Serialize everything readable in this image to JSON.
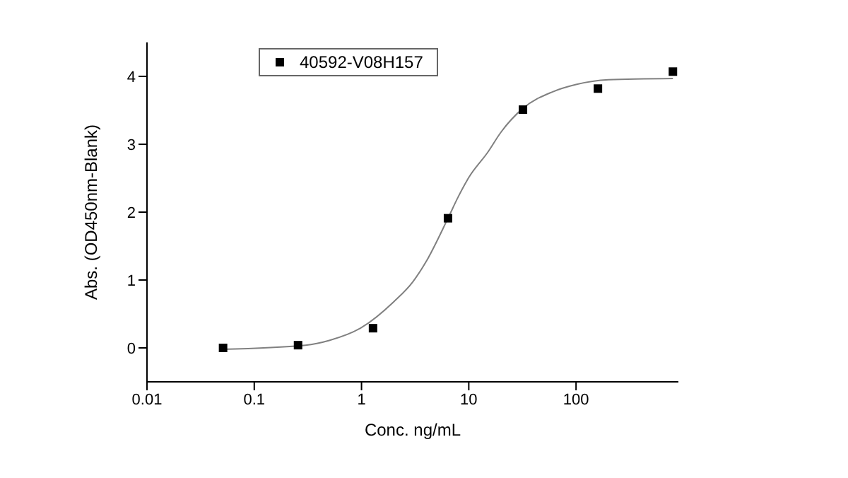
{
  "chart_data": {
    "type": "scatter",
    "xlabel": "Conc. ng/mL",
    "ylabel": "Abs. (OD450nm-Blank)",
    "log": "x",
    "xlim": [
      0.01,
      900
    ],
    "xticks": [
      0.01,
      0.1,
      1,
      10,
      100
    ],
    "ylim": [
      -0.5,
      4.5
    ],
    "yticks": [
      0,
      1,
      2,
      3,
      4
    ],
    "legend": "top left",
    "series": [
      {
        "name": "40592-V08H157",
        "color": "#000000",
        "marker": "square",
        "x": [
          0.0512,
          0.256,
          1.28,
          6.4,
          32,
          160,
          800
        ],
        "values": [
          0,
          0.04,
          0.29,
          1.91,
          3.51,
          3.82,
          4.07
        ]
      },
      {
        "type": "line",
        "color": "#808080",
        "marker": "none",
        "x": [
          0.05,
          0.3,
          0.5,
          1,
          2,
          3,
          4,
          6.4,
          8,
          10,
          15,
          20,
          32,
          60,
          100,
          200,
          800
        ],
        "values": [
          -0.02,
          0.04,
          0.11,
          0.3,
          0.68,
          0.97,
          1.27,
          1.91,
          2.23,
          2.51,
          2.88,
          3.18,
          3.53,
          3.77,
          3.88,
          3.95,
          3.97
        ]
      }
    ]
  }
}
